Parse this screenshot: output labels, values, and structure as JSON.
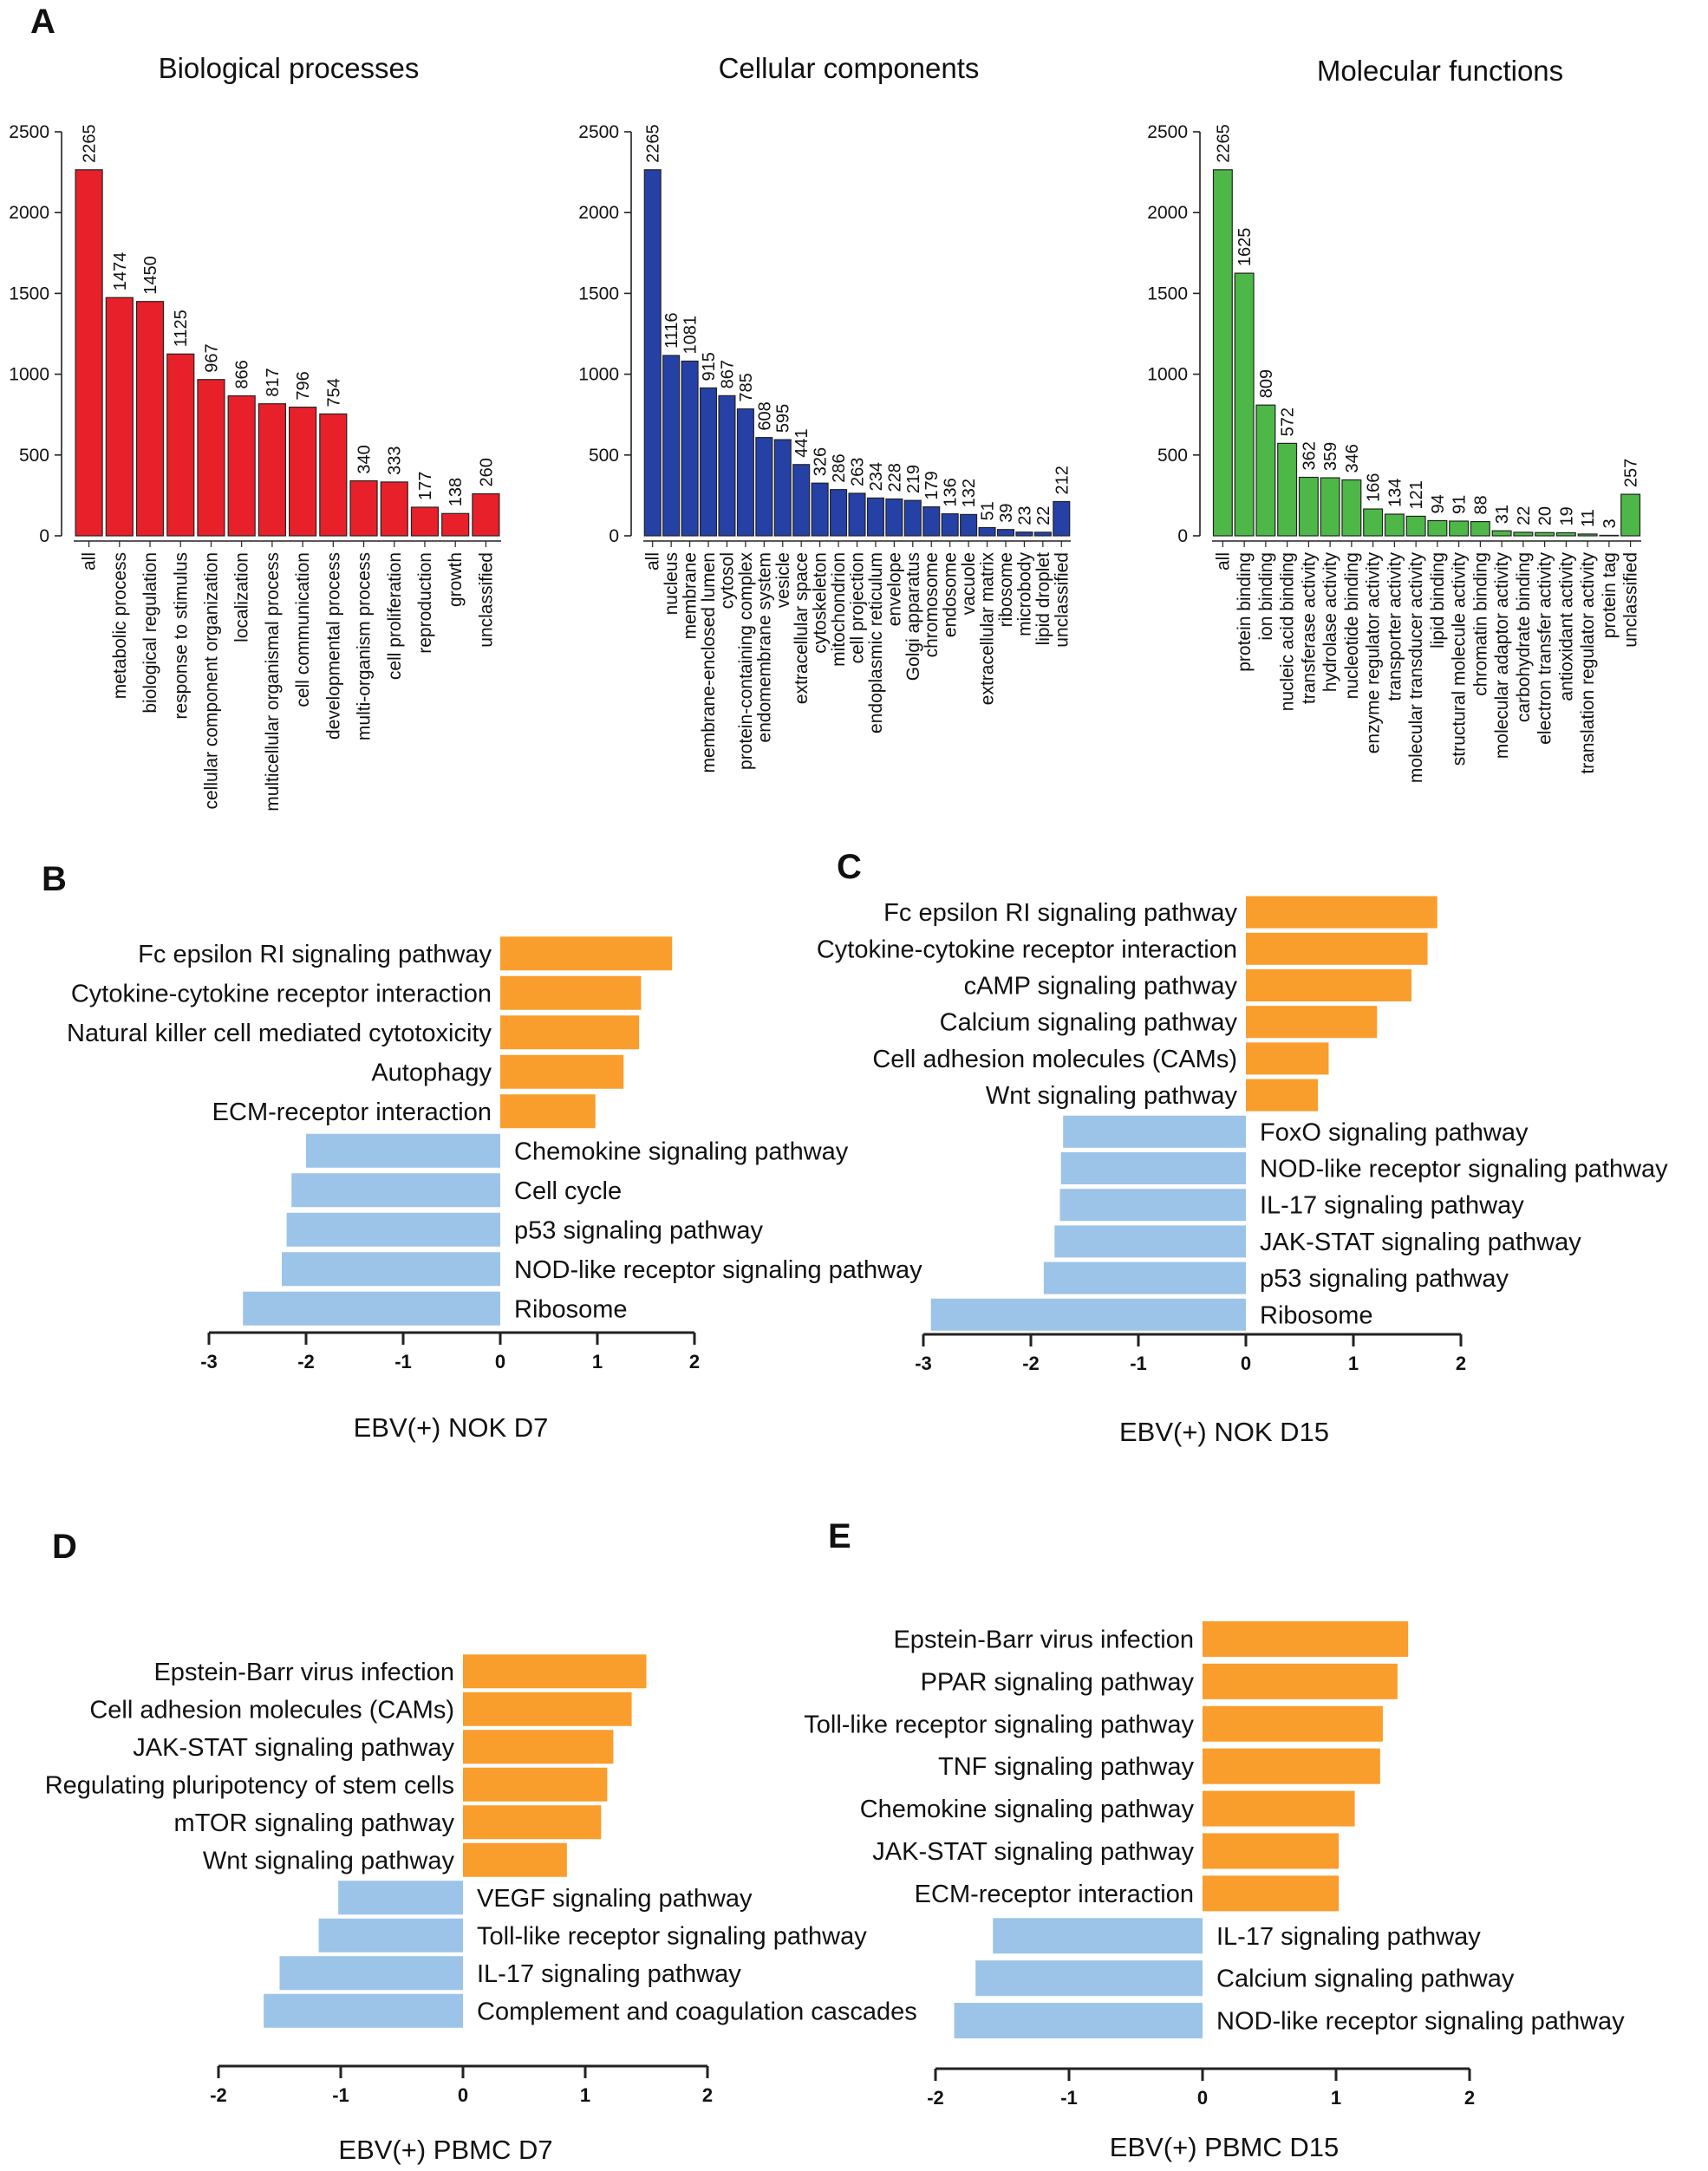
{
  "colors": {
    "bp": "#e8202a",
    "cc": "#2541a6",
    "mf": "#4db847",
    "up": "#f99d2c",
    "down": "#9cc4e8",
    "text": "#111111",
    "edge": "#222222"
  },
  "chart_data": [
    {
      "id": "A1",
      "panel": "A",
      "type": "bar",
      "title": "Biological processes",
      "color_key": "bp",
      "ylim": [
        0,
        2500
      ],
      "yticks": [
        0,
        500,
        1000,
        1500,
        2000,
        2500
      ],
      "categories": [
        "all",
        "metabolic process",
        "biological regulation",
        "response to stimulus",
        "cellular component organization",
        "localization",
        "multicellular organismal process",
        "cell communication",
        "developmental process",
        "multi-organism process",
        "cell proliferation",
        "reproduction",
        "growth",
        "unclassified"
      ],
      "values": [
        2265,
        1474,
        1450,
        1125,
        967,
        866,
        817,
        796,
        754,
        340,
        333,
        177,
        138,
        260
      ]
    },
    {
      "id": "A2",
      "panel": "",
      "type": "bar",
      "title": "Cellular components",
      "color_key": "cc",
      "ylim": [
        0,
        2500
      ],
      "yticks": [
        0,
        500,
        1000,
        1500,
        2000,
        2500
      ],
      "categories": [
        "all",
        "nucleus",
        "membrane",
        "membrane-enclosed lumen",
        "cytosol",
        "protein-containing complex",
        "endomembrane system",
        "vesicle",
        "extracellular space",
        "cytoskeleton",
        "mitochondrion",
        "cell projection",
        "endoplasmic reticulum",
        "envelope",
        "Golgi apparatus",
        "chromosome",
        "endosome",
        "vacuole",
        "extracellular matrix",
        "ribosome",
        "microbody",
        "lipid droplet",
        "unclassified"
      ],
      "values": [
        2265,
        1116,
        1081,
        915,
        867,
        785,
        608,
        595,
        441,
        326,
        286,
        263,
        234,
        228,
        219,
        179,
        136,
        132,
        51,
        39,
        23,
        22,
        212
      ]
    },
    {
      "id": "A3",
      "panel": "",
      "type": "bar",
      "title": "Molecular functions",
      "color_key": "mf",
      "ylim": [
        0,
        2500
      ],
      "yticks": [
        0,
        500,
        1000,
        1500,
        2000,
        2500
      ],
      "categories": [
        "all",
        "protein binding",
        "ion binding",
        "nucleic acid binding",
        "transferase activity",
        "hydrolase activity",
        "nucleotide binding",
        "enzyme regulator activity",
        "transporter activity",
        "molecular transducer activity",
        "lipid binding",
        "structural molecule activity",
        "chromatin binding",
        "molecular adaptor activity",
        "carbohydrate binding",
        "electron transfer activity",
        "antioxidant activity",
        "translation regulator activity",
        "protein tag",
        "unclassified"
      ],
      "values": [
        2265,
        1625,
        809,
        572,
        362,
        359,
        346,
        166,
        134,
        121,
        94,
        91,
        88,
        31,
        22,
        20,
        19,
        11,
        3,
        257
      ]
    },
    {
      "id": "B",
      "panel": "B",
      "type": "bar",
      "orientation": "horizontal",
      "xlabel": "EBV(+) NOK D7",
      "xlim": [
        -3,
        2
      ],
      "xticks": [
        -3,
        -2,
        -1,
        0,
        1,
        2
      ],
      "categories": [
        "Fc epsilon RI signaling pathway",
        "Cytokine-cytokine receptor interaction",
        "Natural killer cell mediated cytotoxicity",
        "Autophagy",
        "ECM-receptor interaction",
        "Chemokine signaling pathway",
        "Cell cycle",
        "p53 signaling pathway",
        "NOD-like receptor signaling pathway",
        "Ribosome"
      ],
      "values": [
        1.77,
        1.45,
        1.43,
        1.27,
        0.98,
        -2.0,
        -2.15,
        -2.2,
        -2.25,
        -2.65
      ]
    },
    {
      "id": "C",
      "panel": "C",
      "type": "bar",
      "orientation": "horizontal",
      "xlabel": "EBV(+) NOK D15",
      "xlim": [
        -3,
        2
      ],
      "xticks": [
        -3,
        -2,
        -1,
        0,
        1,
        2
      ],
      "categories": [
        "Fc epsilon RI signaling pathway",
        "Cytokine-cytokine receptor interaction",
        "cAMP signaling pathway",
        "Calcium signaling pathway",
        "Cell adhesion molecules (CAMs)",
        "Wnt signaling pathway",
        "FoxO signaling pathway",
        "NOD-like receptor signaling pathway",
        "IL-17 signaling pathway",
        "JAK-STAT signaling pathway",
        "p53 signaling pathway",
        "Ribosome"
      ],
      "values": [
        1.78,
        1.69,
        1.54,
        1.22,
        0.77,
        0.67,
        -1.7,
        -1.72,
        -1.73,
        -1.78,
        -1.88,
        -2.93
      ]
    },
    {
      "id": "D",
      "panel": "D",
      "type": "bar",
      "orientation": "horizontal",
      "xlabel": "EBV(+) PBMC D7",
      "xlim": [
        -2,
        2
      ],
      "xticks": [
        -2,
        -1,
        0,
        1,
        2
      ],
      "categories": [
        "Epstein-Barr virus infection",
        "Cell adhesion molecules (CAMs)",
        "JAK-STAT signaling pathway",
        "Regulating pluripotency of stem cells",
        "mTOR signaling pathway",
        "Wnt signaling pathway",
        "VEGF signaling pathway",
        "Toll-like receptor signaling pathway",
        "IL-17 signaling pathway",
        "Complement and coagulation cascades"
      ],
      "values": [
        1.5,
        1.38,
        1.23,
        1.18,
        1.13,
        0.85,
        -1.02,
        -1.18,
        -1.5,
        -1.63
      ]
    },
    {
      "id": "E",
      "panel": "E",
      "type": "bar",
      "orientation": "horizontal",
      "xlabel": "EBV(+) PBMC D15",
      "xlim": [
        -2,
        2
      ],
      "xticks": [
        -2,
        -1,
        0,
        1,
        2
      ],
      "categories": [
        "Epstein-Barr virus infection",
        "PPAR signaling pathway",
        "Toll-like receptor signaling pathway",
        "TNF signaling pathway",
        "Chemokine signaling pathway",
        "JAK-STAT signaling pathway",
        "ECM-receptor interaction",
        "IL-17 signaling pathway",
        "Calcium signaling pathway",
        "NOD-like receptor signaling pathway"
      ],
      "values": [
        1.54,
        1.46,
        1.35,
        1.33,
        1.14,
        1.02,
        1.02,
        -1.57,
        -1.7,
        -1.86
      ]
    }
  ]
}
